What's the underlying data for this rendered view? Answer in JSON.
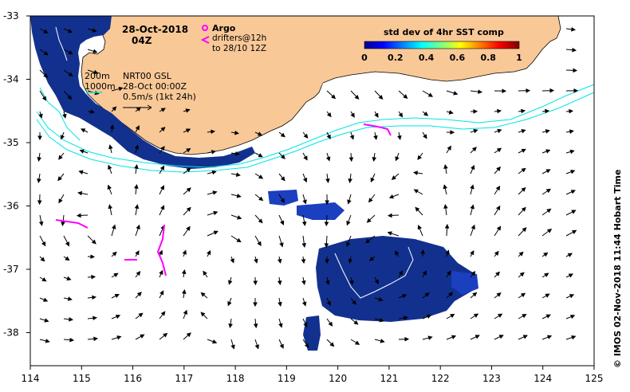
{
  "header": {
    "date": "28-Oct-2018",
    "time": "04Z"
  },
  "legend": {
    "argo_label": "Argo",
    "drifters_line1": "drifters@12h",
    "drifters_line2": "to 28/10 12Z",
    "argo_color": "#ff00ff"
  },
  "colorbar": {
    "title": "std dev of 4hr SST comp",
    "ticks": [
      "0",
      "0.2",
      "0.4",
      "0.6",
      "0.8",
      "1"
    ]
  },
  "isobaths": {
    "line1": "200m",
    "line2": "1000m",
    "color": "#00e5e5"
  },
  "product": {
    "name": "NRT00 GSL",
    "date": "28-Oct 00:00Z",
    "scale": "0.5m/s (1kt 24h)"
  },
  "axes": {
    "x_ticks": [
      "114",
      "115",
      "116",
      "117",
      "118",
      "119",
      "120",
      "121",
      "122",
      "123",
      "124",
      "125"
    ],
    "y_ticks": [
      "-33",
      "-34",
      "-35",
      "-36",
      "-37",
      "-38"
    ],
    "xlim": [
      114,
      125
    ],
    "ylim": [
      -38.5,
      -33
    ]
  },
  "credit": "© IMOS 02-Nov-2018 11:44 Hobart Time",
  "colors": {
    "land": "#f9c897",
    "sst_low": "#0f2a8f",
    "sst_mid": "#1a3fbf"
  }
}
